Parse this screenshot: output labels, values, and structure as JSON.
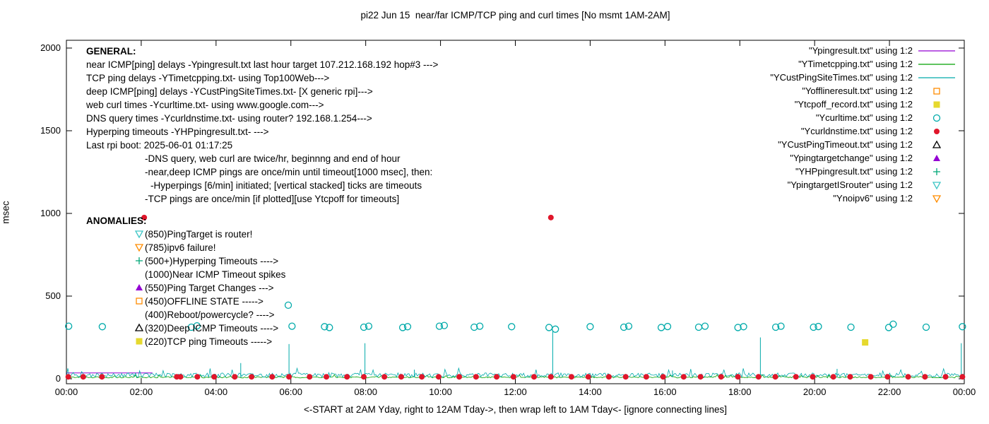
{
  "chart_data": {
    "type": "scatter",
    "title": "pi22 Jun 15  near/far ICMP/TCP ping and curl times [No msmt 1AM-2AM]",
    "xlabel": "<-START at 2AM Yday, right to 12AM Tday->, then wrap left to 1AM Tday<- [ignore connecting lines]",
    "ylabel": "msec",
    "x_ticks": [
      "00:00",
      "02:00",
      "04:00",
      "06:00",
      "08:00",
      "10:00",
      "12:00",
      "14:00",
      "16:00",
      "18:00",
      "20:00",
      "22:00",
      "00:00"
    ],
    "x_hours": [
      0,
      24
    ],
    "y_ticks": [
      0,
      500,
      1000,
      1500,
      2000
    ],
    "ylim": [
      0,
      2000
    ],
    "grid": false,
    "legend_position": "top-right-inside",
    "series": [
      {
        "label": "\"Ypingresult.txt\" using 1:2",
        "sample": "line",
        "color": "#9400d3",
        "type": "segments",
        "segments": [
          [
            [
              0.0,
              35
            ],
            [
              2.3,
              35
            ]
          ]
        ]
      },
      {
        "label": "\"YTimetcpping.txt\" using 1:2",
        "sample": "line",
        "color": "#00a000",
        "type": "noisy",
        "baseline": 5,
        "noise": 9,
        "spikes": []
      },
      {
        "label": "\"YCustPingSiteTimes.txt\" using 1:2",
        "sample": "line",
        "color": "#00aaaa",
        "type": "noisy",
        "baseline": 9,
        "noise": 26,
        "spikes": [
          [
            4.66,
            95
          ],
          [
            5.95,
            210
          ],
          [
            7.98,
            215
          ],
          [
            9.3,
            55
          ],
          [
            13.0,
            290
          ],
          [
            16.2,
            50
          ],
          [
            18.55,
            250
          ],
          [
            20.6,
            60
          ],
          [
            23.92,
            215
          ]
        ]
      },
      {
        "label": "\"Yofflineresult.txt\" using 1:2",
        "sample": "marker",
        "marker": "open-square",
        "color": "#ff8c00",
        "type": "points",
        "points": []
      },
      {
        "label": "\"Ytcpoff_record.txt\" using 1:2",
        "sample": "marker",
        "marker": "filled-square",
        "color": "#e6d92e",
        "type": "points",
        "points": [
          [
            21.35,
            220
          ]
        ]
      },
      {
        "label": "\"Ycurltime.txt\" using 1:2",
        "sample": "marker",
        "marker": "open-circle",
        "color": "#00aaaa",
        "type": "points",
        "points": [
          [
            0.06,
            318
          ],
          [
            0.96,
            315
          ],
          [
            3.34,
            312
          ],
          [
            3.49,
            320
          ],
          [
            5.93,
            445
          ],
          [
            6.03,
            318
          ],
          [
            6.9,
            315
          ],
          [
            7.03,
            310
          ],
          [
            7.95,
            312
          ],
          [
            8.08,
            318
          ],
          [
            8.99,
            310
          ],
          [
            9.12,
            315
          ],
          [
            9.97,
            318
          ],
          [
            10.1,
            322
          ],
          [
            10.9,
            312
          ],
          [
            11.05,
            318
          ],
          [
            11.9,
            315
          ],
          [
            12.9,
            310
          ],
          [
            13.07,
            300
          ],
          [
            14.0,
            315
          ],
          [
            14.9,
            312
          ],
          [
            15.03,
            318
          ],
          [
            15.9,
            310
          ],
          [
            16.07,
            316
          ],
          [
            16.9,
            312
          ],
          [
            17.07,
            318
          ],
          [
            17.95,
            310
          ],
          [
            18.1,
            315
          ],
          [
            18.96,
            312
          ],
          [
            19.1,
            318
          ],
          [
            19.97,
            312
          ],
          [
            20.1,
            316
          ],
          [
            20.97,
            312
          ],
          [
            21.98,
            310
          ],
          [
            22.1,
            330
          ],
          [
            22.98,
            312
          ],
          [
            23.95,
            315
          ]
        ]
      },
      {
        "label": "\"Ycurldnstime.txt\" using 1:2",
        "sample": "marker",
        "marker": "filled-circle",
        "color": "#e0162b",
        "type": "points",
        "points": [
          [
            0.05,
            12
          ],
          [
            0.45,
            12
          ],
          [
            0.95,
            12
          ],
          [
            2.08,
            975
          ],
          [
            2.95,
            12
          ],
          [
            3.05,
            12
          ],
          [
            3.5,
            12
          ],
          [
            3.95,
            12
          ],
          [
            4.5,
            12
          ],
          [
            4.95,
            12
          ],
          [
            5.5,
            12
          ],
          [
            5.95,
            12
          ],
          [
            6.5,
            12
          ],
          [
            6.95,
            12
          ],
          [
            7.5,
            12
          ],
          [
            7.95,
            12
          ],
          [
            8.5,
            12
          ],
          [
            8.95,
            12
          ],
          [
            9.5,
            12
          ],
          [
            9.95,
            12
          ],
          [
            10.5,
            12
          ],
          [
            10.95,
            12
          ],
          [
            11.5,
            12
          ],
          [
            11.95,
            12
          ],
          [
            12.5,
            12
          ],
          [
            12.95,
            975
          ],
          [
            12.95,
            12
          ],
          [
            13.5,
            12
          ],
          [
            13.95,
            12
          ],
          [
            14.5,
            12
          ],
          [
            14.95,
            12
          ],
          [
            15.5,
            12
          ],
          [
            15.95,
            12
          ],
          [
            16.5,
            12
          ],
          [
            16.95,
            12
          ],
          [
            17.5,
            12
          ],
          [
            17.95,
            12
          ],
          [
            18.5,
            12
          ],
          [
            18.95,
            12
          ],
          [
            19.5,
            12
          ],
          [
            19.95,
            12
          ],
          [
            20.5,
            12
          ],
          [
            20.95,
            12
          ],
          [
            21.5,
            12
          ],
          [
            21.95,
            12
          ],
          [
            22.5,
            12
          ],
          [
            22.95,
            12
          ],
          [
            23.5,
            12
          ],
          [
            23.95,
            12
          ]
        ]
      },
      {
        "label": "\"YCustPingTimeout.txt\" using 1:2",
        "sample": "marker",
        "marker": "open-triangle-up",
        "color": "#000000",
        "type": "points",
        "points": []
      },
      {
        "label": "\"Ypingtargetchange\" using 1:2",
        "sample": "marker",
        "marker": "filled-triangle-up",
        "color": "#9400d3",
        "type": "points",
        "points": []
      },
      {
        "label": "\"YHPpingresult.txt\" using 1:2",
        "sample": "marker",
        "marker": "plus",
        "color": "#00a878",
        "type": "points",
        "points": []
      },
      {
        "label": "\"YpingtargetISrouter\" using 1:2",
        "sample": "marker",
        "marker": "open-triangle-down",
        "color": "#3ec6c6",
        "type": "points",
        "points": []
      },
      {
        "label": "\"Ynoipv6\" using 1:2",
        "sample": "marker",
        "marker": "open-triangle-down",
        "color": "#ff8c00",
        "type": "points",
        "points": []
      }
    ],
    "annotations": {
      "general": {
        "heading": "GENERAL:",
        "lines": [
          {
            "text": "near ICMP[ping] delays -Ypingresult.txt last hour target 107.212.168.192 hop#3 --->",
            "indent": 0
          },
          {
            "text": "TCP ping delays -YTimetcpping.txt- using Top100Web--->",
            "indent": 0
          },
          {
            "text": "deep ICMP[ping] delays -YCustPingSiteTimes.txt- [X generic rpi]--->",
            "indent": 0
          },
          {
            "text": "web curl times -Ycurltime.txt- using www.google.com--->",
            "indent": 0
          },
          {
            "text": "DNS query times -Ycurldnstime.txt- using router? 192.168.1.254--->",
            "indent": 0
          },
          {
            "text": "Hyperping timeouts -YHPpingresult.txt- --->",
            "indent": 0
          },
          {
            "text": "Last rpi boot: 2025-06-01 01:17:25",
            "indent": 0
          },
          {
            "text": "-DNS query, web curl are twice/hr, beginnng and end of hour",
            "indent": 1
          },
          {
            "text": "-near,deep ICMP pings are once/min until timeout[1000 msec], then:",
            "indent": 1
          },
          {
            "text": "-Hyperpings [6/min] initiated; [vertical stacked] ticks are timeouts",
            "indent": 2
          },
          {
            "text": "-TCP pings are once/min [if plotted][use Ytcpoff for timeouts]",
            "indent": 1
          }
        ]
      },
      "anomalies": {
        "heading": "ANOMALIES:",
        "items": [
          {
            "marker": "open-triangle-down",
            "color": "#3ec6c6",
            "text": "(850)PingTarget is router!"
          },
          {
            "marker": "open-triangle-down",
            "color": "#ff8c00",
            "text": "(785)ipv6 failure!"
          },
          {
            "marker": "plus",
            "color": "#00a878",
            "text": "(500+)Hyperping Timeouts ---->"
          },
          {
            "marker": null,
            "color": null,
            "text": "(1000)Near ICMP Timeout spikes"
          },
          {
            "marker": "filled-triangle-up",
            "color": "#9400d3",
            "text": "(550)Ping Target Changes --->"
          },
          {
            "marker": "open-square",
            "color": "#ff8c00",
            "text": "(450)OFFLINE STATE ----->"
          },
          {
            "marker": null,
            "color": null,
            "text": "(400)Reboot/powercycle? ---->"
          },
          {
            "marker": "open-triangle-up",
            "color": "#000000",
            "text": "(320)Deep ICMP Timeouts ---->"
          },
          {
            "marker": "filled-square",
            "color": "#e6d92e",
            "text": "(220)TCP ping Timeouts ----->"
          }
        ]
      }
    }
  }
}
